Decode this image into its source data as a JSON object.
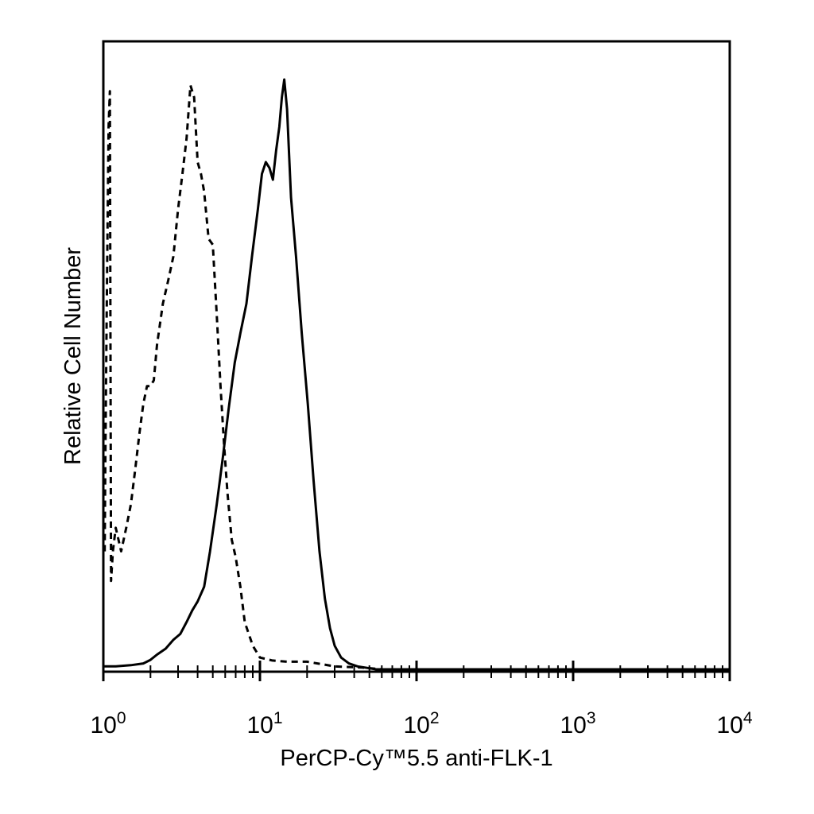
{
  "chart_data": {
    "type": "line",
    "xlabel": "PerCP-Cy™5.5 anti-FLK-1",
    "ylabel": "Relative Cell Number",
    "x_scale": "log",
    "xlim": [
      1,
      10000
    ],
    "ylim": [
      0,
      100
    ],
    "grid": false,
    "x_ticks": [
      {
        "base": "10",
        "exp": "0"
      },
      {
        "base": "10",
        "exp": "1"
      },
      {
        "base": "10",
        "exp": "2"
      },
      {
        "base": "10",
        "exp": "3"
      },
      {
        "base": "10",
        "exp": "4"
      }
    ],
    "series": [
      {
        "style": "dashed",
        "color": "#000000",
        "x": [
          1.02,
          1.03,
          1.05,
          1.08,
          1.1,
          1.12,
          1.15,
          1.2,
          1.3,
          1.4,
          1.5,
          1.6,
          1.7,
          1.8,
          1.9,
          2.0,
          2.1,
          2.2,
          2.4,
          2.6,
          2.8,
          3.0,
          3.2,
          3.4,
          3.6,
          3.8,
          4.0,
          4.2,
          4.4,
          4.7,
          5.0,
          5.3,
          5.6,
          5.9,
          6.2,
          6.6,
          7.0,
          7.5,
          8.0,
          9.0,
          10.0,
          12.0,
          15.0,
          20.0,
          30.0,
          45.0,
          60.0,
          100.0,
          1000.0,
          10000.0
        ],
        "y": [
          20,
          35,
          60,
          92,
          98,
          15,
          20,
          24,
          20,
          24,
          28,
          34,
          40,
          45,
          48,
          48,
          49,
          55,
          62,
          66,
          70,
          78,
          84,
          90,
          99,
          97,
          86,
          84,
          81,
          73,
          72,
          60,
          48,
          38,
          30,
          22,
          19,
          14,
          8,
          4,
          2,
          1.5,
          1.3,
          1.3,
          0.5,
          0.3,
          0,
          0,
          0,
          0
        ]
      },
      {
        "style": "solid",
        "color": "#000000",
        "x": [
          1.0,
          1.2,
          1.5,
          1.8,
          2.0,
          2.2,
          2.5,
          2.8,
          3.1,
          3.4,
          3.7,
          4.0,
          4.4,
          4.8,
          5.3,
          5.8,
          6.3,
          6.9,
          7.5,
          8.2,
          8.9,
          9.7,
          10.3,
          10.9,
          11.5,
          12.1,
          12.7,
          13.3,
          13.8,
          14.3,
          14.9,
          15.8,
          17.0,
          18.5,
          20.2,
          22.0,
          24.0,
          26.0,
          28.0,
          30.0,
          33.0,
          37.0,
          42.0,
          47.0,
          55.0,
          100.0,
          1000.0,
          10000.0
        ],
        "y": [
          0.5,
          0.5,
          0.7,
          1.0,
          1.6,
          2.5,
          3.5,
          5.0,
          6.0,
          8.0,
          10.0,
          11.5,
          14.0,
          20.0,
          28.0,
          36.0,
          44.0,
          52.0,
          57.0,
          62.0,
          70.0,
          78.0,
          84.0,
          86.0,
          85.0,
          83.0,
          88.0,
          92.0,
          97.0,
          100.0,
          95.0,
          80.0,
          70.0,
          57.0,
          45.0,
          32.0,
          20.0,
          12.0,
          7.0,
          4.0,
          2.0,
          1.0,
          0.5,
          0.3,
          0,
          0,
          0,
          0
        ]
      }
    ]
  }
}
